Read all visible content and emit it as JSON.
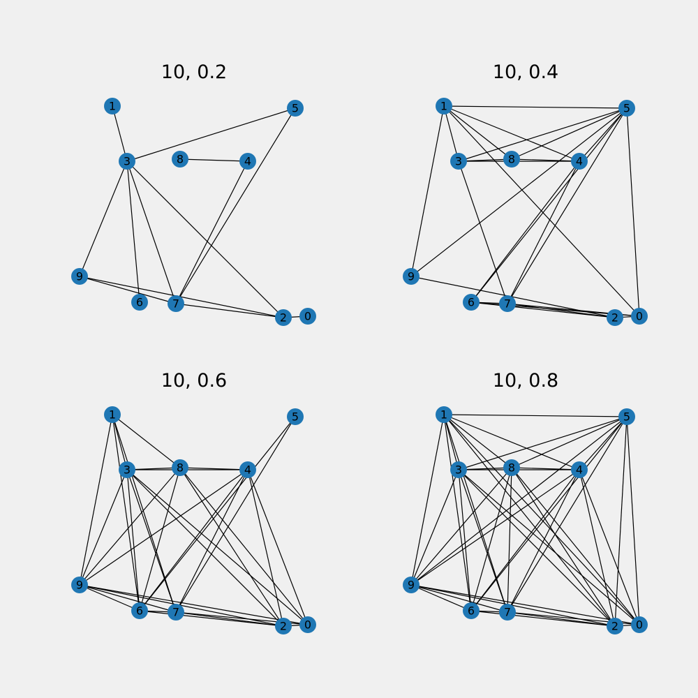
{
  "colors": {
    "node": "#1f77b4",
    "edge": "#000000",
    "background": "#f0f0f0"
  },
  "node_labels": [
    "0",
    "1",
    "2",
    "3",
    "4",
    "5",
    "6",
    "7",
    "8",
    "9"
  ],
  "panels": [
    {
      "title": "10, 0.2",
      "edges": [
        [
          1,
          3
        ],
        [
          3,
          5
        ],
        [
          3,
          9
        ],
        [
          3,
          6
        ],
        [
          3,
          7
        ],
        [
          3,
          2
        ],
        [
          8,
          4
        ],
        [
          4,
          7
        ],
        [
          5,
          7
        ],
        [
          9,
          7
        ],
        [
          9,
          2
        ],
        [
          7,
          2
        ],
        [
          2,
          0
        ]
      ]
    },
    {
      "title": "10, 0.4",
      "edges": [
        [
          1,
          5
        ],
        [
          1,
          3
        ],
        [
          1,
          8
        ],
        [
          1,
          4
        ],
        [
          1,
          9
        ],
        [
          1,
          0
        ],
        [
          5,
          3
        ],
        [
          5,
          8
        ],
        [
          5,
          4
        ],
        [
          5,
          9
        ],
        [
          5,
          6
        ],
        [
          5,
          7
        ],
        [
          5,
          0
        ],
        [
          3,
          8
        ],
        [
          3,
          4
        ],
        [
          3,
          7
        ],
        [
          8,
          4
        ],
        [
          4,
          6
        ],
        [
          4,
          7
        ],
        [
          9,
          2
        ],
        [
          6,
          7
        ],
        [
          6,
          2
        ],
        [
          6,
          0
        ],
        [
          7,
          2
        ],
        [
          7,
          0
        ],
        [
          2,
          0
        ]
      ]
    },
    {
      "title": "10, 0.6",
      "edges": [
        [
          1,
          3
        ],
        [
          1,
          8
        ],
        [
          1,
          9
        ],
        [
          1,
          6
        ],
        [
          1,
          7
        ],
        [
          3,
          8
        ],
        [
          3,
          4
        ],
        [
          3,
          9
        ],
        [
          3,
          6
        ],
        [
          3,
          7
        ],
        [
          3,
          2
        ],
        [
          3,
          0
        ],
        [
          8,
          4
        ],
        [
          8,
          9
        ],
        [
          8,
          6
        ],
        [
          8,
          2
        ],
        [
          8,
          0
        ],
        [
          4,
          9
        ],
        [
          4,
          6
        ],
        [
          4,
          7
        ],
        [
          4,
          2
        ],
        [
          4,
          0
        ],
        [
          5,
          6
        ],
        [
          5,
          7
        ],
        [
          9,
          6
        ],
        [
          9,
          7
        ],
        [
          9,
          2
        ],
        [
          9,
          0
        ],
        [
          6,
          7
        ],
        [
          6,
          2
        ],
        [
          7,
          2
        ],
        [
          7,
          0
        ],
        [
          2,
          0
        ]
      ]
    },
    {
      "title": "10, 0.8",
      "edges": [
        [
          1,
          5
        ],
        [
          1,
          3
        ],
        [
          1,
          8
        ],
        [
          1,
          4
        ],
        [
          1,
          9
        ],
        [
          1,
          6
        ],
        [
          1,
          7
        ],
        [
          1,
          2
        ],
        [
          1,
          0
        ],
        [
          5,
          3
        ],
        [
          5,
          8
        ],
        [
          5,
          4
        ],
        [
          5,
          9
        ],
        [
          5,
          6
        ],
        [
          5,
          7
        ],
        [
          5,
          2
        ],
        [
          5,
          0
        ],
        [
          3,
          8
        ],
        [
          3,
          4
        ],
        [
          3,
          9
        ],
        [
          3,
          6
        ],
        [
          3,
          7
        ],
        [
          3,
          2
        ],
        [
          3,
          0
        ],
        [
          8,
          4
        ],
        [
          8,
          9
        ],
        [
          8,
          6
        ],
        [
          8,
          7
        ],
        [
          8,
          2
        ],
        [
          8,
          0
        ],
        [
          4,
          9
        ],
        [
          4,
          6
        ],
        [
          4,
          7
        ],
        [
          4,
          2
        ],
        [
          4,
          0
        ],
        [
          9,
          6
        ],
        [
          9,
          7
        ],
        [
          9,
          2
        ],
        [
          9,
          0
        ],
        [
          6,
          7
        ],
        [
          6,
          2
        ],
        [
          7,
          2
        ],
        [
          7,
          0
        ],
        [
          2,
          0
        ]
      ]
    }
  ]
}
